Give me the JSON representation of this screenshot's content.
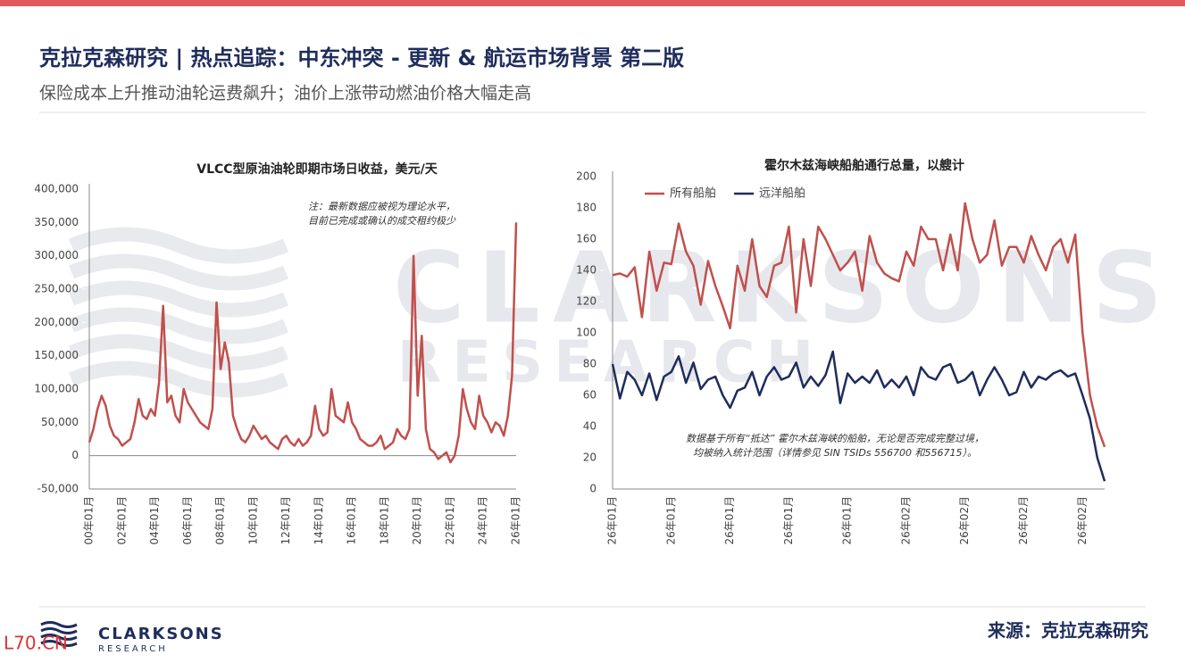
{
  "header": {
    "title": "克拉克森研究 | 热点追踪：中东冲突 - 更新 & 航运市场背景 第二版",
    "subtitle": "保险成本上升推动油轮运费飙升；油价上涨带动燃油价格大幅走高"
  },
  "watermark": {
    "line1": "CLARKSONS",
    "line2": "RESEARCH"
  },
  "chart_data": [
    {
      "type": "line",
      "title": "VLCC型原油油轮即期市场日收益，美元/天",
      "annotation": [
        "注：最新数据应被视为理论水平，",
        "目前已完成或确认的成交租约极少"
      ],
      "categories": [
        "00年01月",
        null,
        null,
        null,
        null,
        null,
        null,
        null,
        "02年01月",
        null,
        null,
        null,
        null,
        null,
        null,
        null,
        "04年01月",
        null,
        null,
        null,
        null,
        null,
        null,
        null,
        "06年01月",
        null,
        null,
        null,
        null,
        null,
        null,
        null,
        "08年01月",
        null,
        null,
        null,
        null,
        null,
        null,
        null,
        "10年01月",
        null,
        null,
        null,
        null,
        null,
        null,
        null,
        "12年01月",
        null,
        null,
        null,
        null,
        null,
        null,
        null,
        "14年01月",
        null,
        null,
        null,
        null,
        null,
        null,
        null,
        "16年01月",
        null,
        null,
        null,
        null,
        null,
        null,
        null,
        "18年01月",
        null,
        null,
        null,
        null,
        null,
        null,
        null,
        "20年01月",
        null,
        null,
        null,
        null,
        null,
        null,
        null,
        "22年01月",
        null,
        null,
        null,
        null,
        null,
        null,
        null,
        "24年01月",
        null,
        null,
        null,
        null,
        null,
        null,
        null,
        "26年01月"
      ],
      "values": [
        20000,
        40000,
        70000,
        90000,
        75000,
        45000,
        30000,
        25000,
        15000,
        20000,
        25000,
        50000,
        85000,
        60000,
        55000,
        70000,
        60000,
        110000,
        225000,
        80000,
        90000,
        60000,
        50000,
        100000,
        80000,
        70000,
        60000,
        50000,
        45000,
        40000,
        70000,
        230000,
        130000,
        170000,
        140000,
        60000,
        40000,
        25000,
        20000,
        30000,
        45000,
        35000,
        25000,
        30000,
        20000,
        15000,
        10000,
        25000,
        30000,
        20000,
        15000,
        25000,
        15000,
        20000,
        30000,
        75000,
        40000,
        30000,
        35000,
        100000,
        60000,
        55000,
        50000,
        80000,
        50000,
        40000,
        25000,
        20000,
        15000,
        15000,
        20000,
        30000,
        10000,
        15000,
        20000,
        40000,
        30000,
        25000,
        40000,
        300000,
        90000,
        180000,
        40000,
        10000,
        5000,
        -5000,
        0,
        5000,
        -10000,
        0,
        30000,
        100000,
        70000,
        50000,
        40000,
        90000,
        60000,
        50000,
        35000,
        50000,
        45000,
        30000,
        60000,
        120000,
        350000
      ],
      "color": "#c0504d",
      "ylim": [
        -50000,
        400000
      ],
      "yticks": [
        {
          "value": 400000,
          "label": "400,000"
        },
        {
          "value": 350000,
          "label": "350,000"
        },
        {
          "value": 300000,
          "label": "300,000"
        },
        {
          "value": 250000,
          "label": "250,000"
        },
        {
          "value": 200000,
          "label": "200,000"
        },
        {
          "value": 150000,
          "label": "150,000"
        },
        {
          "value": 100000,
          "label": "100,000"
        },
        {
          "value": 50000,
          "label": "50,000"
        },
        0,
        {
          "value": -50000,
          "label": "-50,000"
        }
      ]
    },
    {
      "type": "line",
      "title": "霍尔木兹海峡船舶通行总量，以艘计",
      "annotation": [
        "数据基于所有“抵达” 霍尔木兹海峡的船舶，无论是否完成完整过境，",
        "均被纳入统计范围（详情参见 SIN TSIDs 556700 和556715）。"
      ],
      "legend": "upper left",
      "categories": [
        "26年01月",
        null,
        null,
        null,
        null,
        null,
        null,
        null,
        "26年01月",
        null,
        null,
        null,
        null,
        null,
        null,
        null,
        "26年01月",
        null,
        null,
        null,
        null,
        null,
        null,
        null,
        "26年01月",
        null,
        null,
        null,
        null,
        null,
        null,
        null,
        "26年01月",
        null,
        null,
        null,
        null,
        null,
        null,
        null,
        "26年02月",
        null,
        null,
        null,
        null,
        null,
        null,
        null,
        "26年02月",
        null,
        null,
        null,
        null,
        null,
        null,
        null,
        "26年02月",
        null,
        null,
        null,
        null,
        null,
        null,
        null,
        "26年02月",
        null,
        null,
        null
      ],
      "series": [
        {
          "name": "所有船舶",
          "color": "#c0504d",
          "values": [
            137,
            138,
            136,
            142,
            110,
            152,
            127,
            145,
            144,
            170,
            152,
            143,
            118,
            146,
            130,
            117,
            103,
            143,
            127,
            160,
            130,
            123,
            143,
            145,
            168,
            113,
            160,
            130,
            168,
            160,
            150,
            140,
            145,
            152,
            127,
            162,
            145,
            138,
            135,
            133,
            152,
            143,
            168,
            160,
            160,
            140,
            163,
            140,
            183,
            160,
            145,
            150,
            172,
            143,
            155,
            155,
            145,
            162,
            150,
            140,
            155,
            160,
            145,
            163,
            100,
            60,
            40,
            27
          ]
        },
        {
          "name": "远洋船舶",
          "color": "#1f2d5c",
          "values": [
            80,
            58,
            75,
            70,
            60,
            74,
            57,
            72,
            75,
            85,
            68,
            81,
            64,
            70,
            72,
            60,
            52,
            63,
            65,
            75,
            60,
            72,
            78,
            70,
            72,
            81,
            65,
            72,
            66,
            73,
            88,
            55,
            74,
            68,
            72,
            68,
            76,
            65,
            70,
            65,
            72,
            60,
            78,
            72,
            70,
            78,
            80,
            68,
            70,
            75,
            60,
            70,
            78,
            70,
            60,
            62,
            75,
            65,
            72,
            70,
            74,
            76,
            72,
            74,
            60,
            45,
            20,
            5
          ]
        }
      ],
      "ylim": [
        0,
        200
      ],
      "yticks": [
        0,
        20,
        40,
        60,
        80,
        100,
        120,
        140,
        160,
        180,
        200
      ]
    }
  ],
  "footer": {
    "logo_name": "CLARKSONS",
    "logo_sub": "RESEARCH",
    "source": "来源：克拉克森研究",
    "site": "L70.CN"
  }
}
